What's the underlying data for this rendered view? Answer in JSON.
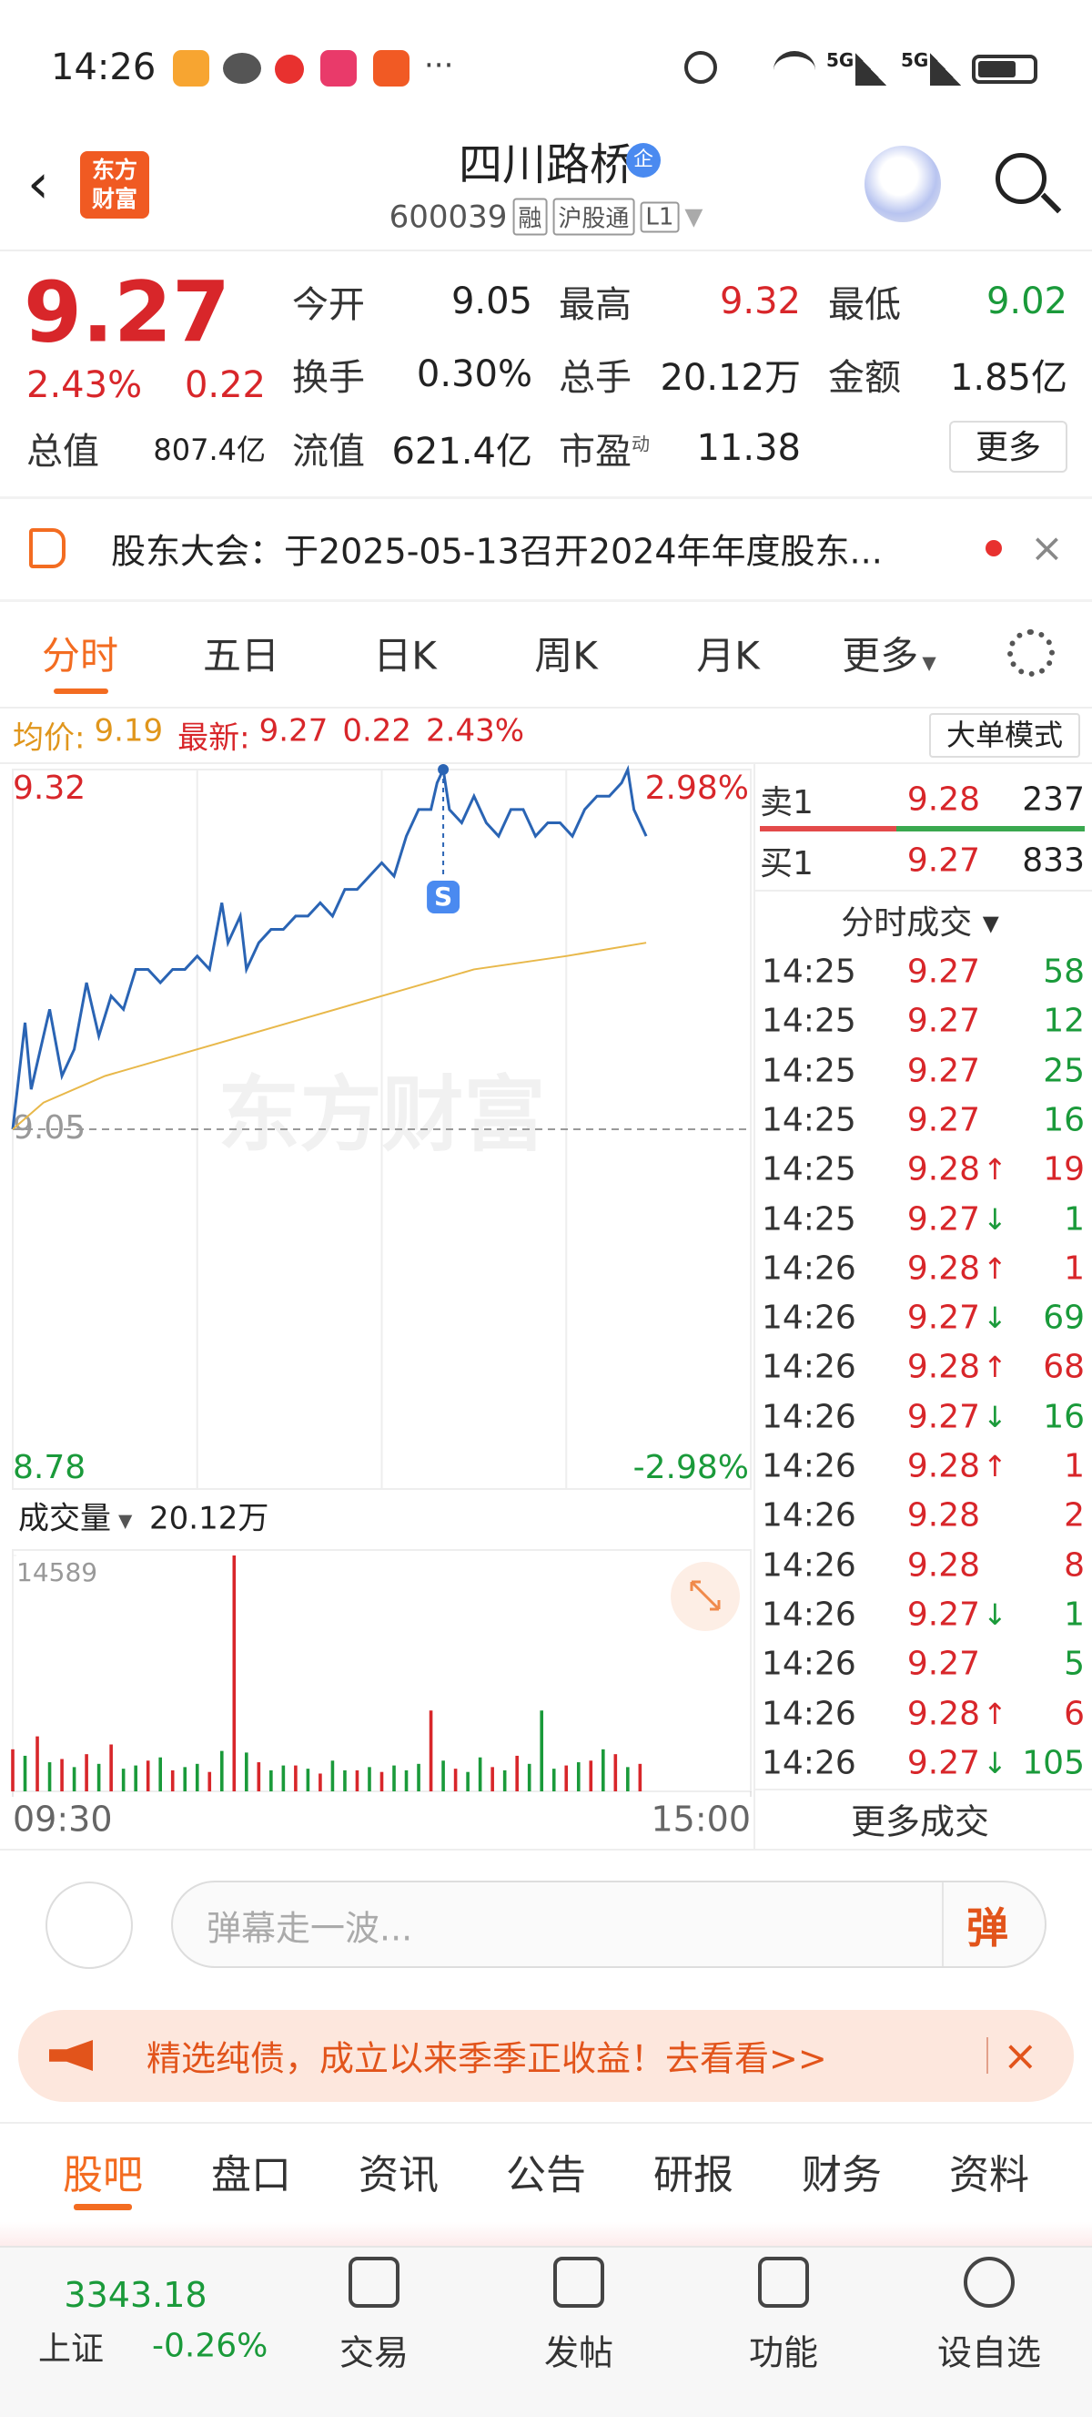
{
  "status": {
    "time": "14:26",
    "network": [
      "5G",
      "5G"
    ]
  },
  "header": {
    "logo": "东方财富",
    "title": "四川路桥",
    "badge": "企",
    "code": "600039",
    "tags": [
      "融",
      "沪股通",
      "L1"
    ]
  },
  "quote": {
    "price": "9.27",
    "change_pct": "2.43%",
    "change": "0.22",
    "more": "更多",
    "fields": [
      {
        "label": "今开",
        "value": "9.05",
        "color": "#222222"
      },
      {
        "label": "最高",
        "value": "9.32",
        "color": "#d8262a"
      },
      {
        "label": "最低",
        "value": "9.02",
        "color": "#1a9a3a"
      },
      {
        "label": "换手",
        "value": "0.30%",
        "color": "#222222"
      },
      {
        "label": "总手",
        "value": "20.12万",
        "color": "#222222"
      },
      {
        "label": "金额",
        "value": "1.85亿",
        "color": "#222222"
      },
      {
        "label": "总值",
        "value": "807.4亿",
        "color": "#222222"
      },
      {
        "label": "流值",
        "value": "621.4亿",
        "color": "#222222"
      },
      {
        "label": "市盈",
        "label_sup": "动",
        "value": "11.38",
        "color": "#222222"
      }
    ]
  },
  "notice": {
    "text": "股东大会：于2025-05-13召开2024年年度股东..."
  },
  "tabs": {
    "items": [
      "分时",
      "五日",
      "日K",
      "周K",
      "月K",
      "更多"
    ],
    "active": 0
  },
  "info": {
    "avg_label": "均价:",
    "avg": "9.19",
    "last_label": "最新:",
    "last": "9.27",
    "change": "0.22",
    "change_pct": "2.43%",
    "mode": "大单模式"
  },
  "chart_data": [
    {
      "type": "line",
      "xlim": [
        0,
        240
      ],
      "xticks": [
        {
          "value": 0,
          "label": "09:30"
        },
        {
          "value": 240,
          "label": "15:00"
        }
      ],
      "ylim": [
        8.78,
        9.32
      ],
      "yticks": [
        8.78,
        9.05,
        9.32
      ],
      "y2lim": [
        -2.98,
        2.98
      ],
      "y2ticks": [
        {
          "value": -2.98,
          "label": "-2.98%"
        },
        {
          "value": 2.98,
          "label": "2.98%"
        }
      ],
      "watermark": "东方财富",
      "annotation": {
        "label": "S",
        "x": 140
      },
      "series": [
        {
          "color": "#2a64b4",
          "x": [
            0,
            2,
            4,
            6,
            8,
            12,
            16,
            20,
            24,
            28,
            32,
            36,
            40,
            44,
            48,
            52,
            56,
            60,
            64,
            68,
            70,
            74,
            76,
            80,
            84,
            88,
            92,
            96,
            100,
            104,
            108,
            112,
            116,
            120,
            124,
            128,
            132,
            136,
            138,
            140,
            142,
            146,
            150,
            154,
            158,
            162,
            166,
            170,
            174,
            178,
            182,
            186,
            190,
            194,
            198,
            200,
            202,
            204,
            206
          ],
          "values": [
            9.05,
            9.09,
            9.13,
            9.08,
            9.1,
            9.14,
            9.09,
            9.11,
            9.16,
            9.12,
            9.15,
            9.14,
            9.17,
            9.17,
            9.16,
            9.17,
            9.17,
            9.18,
            9.17,
            9.22,
            9.19,
            9.21,
            9.17,
            9.19,
            9.2,
            9.2,
            9.21,
            9.21,
            9.22,
            9.21,
            9.23,
            9.23,
            9.24,
            9.25,
            9.24,
            9.27,
            9.29,
            9.29,
            9.31,
            9.32,
            9.29,
            9.28,
            9.3,
            9.28,
            9.27,
            9.29,
            9.29,
            9.27,
            9.28,
            9.28,
            9.27,
            9.29,
            9.3,
            9.3,
            9.31,
            9.32,
            9.29,
            9.28,
            9.27
          ]
        },
        {
          "color": "#e8b84a",
          "x": [
            0,
            10,
            30,
            60,
            90,
            120,
            150,
            180,
            206
          ],
          "values": [
            9.05,
            9.07,
            9.09,
            9.11,
            9.13,
            9.15,
            9.17,
            9.18,
            9.19
          ]
        }
      ]
    },
    {
      "type": "bar",
      "label": "成交量",
      "total": "20.12万",
      "xlim": [
        0,
        240
      ],
      "ylim": [
        0,
        14589
      ],
      "yticks": [
        14589
      ],
      "series": [
        {
          "color": "#d8262a",
          "x": [
            0,
            8,
            16,
            24,
            32,
            44,
            52,
            64,
            72,
            80,
            92,
            100,
            112,
            120,
            136,
            144,
            156,
            164,
            180,
            188,
            196,
            204
          ],
          "values": [
            2600,
            3400,
            2000,
            2300,
            2900,
            1900,
            1300,
            1200,
            14589,
            1800,
            1600,
            1100,
            1300,
            1200,
            5000,
            1400,
            1500,
            2200,
            1600,
            1900,
            2300,
            1700
          ]
        },
        {
          "color": "#1a9a3a",
          "x": [
            4,
            12,
            20,
            28,
            36,
            40,
            48,
            56,
            60,
            68,
            76,
            84,
            88,
            96,
            104,
            108,
            116,
            124,
            128,
            132,
            140,
            148,
            152,
            160,
            168,
            172,
            176,
            184,
            192,
            200
          ],
          "values": [
            2200,
            1800,
            1500,
            1700,
            1400,
            1600,
            2100,
            1500,
            1700,
            2500,
            2400,
            1300,
            1600,
            1400,
            1900,
            1300,
            1500,
            1600,
            1300,
            1700,
            1900,
            1200,
            2100,
            1300,
            1700,
            5000,
            1400,
            1800,
            2600,
            1500
          ]
        }
      ]
    }
  ],
  "trades": {
    "book": [
      {
        "label": "卖1",
        "price": "9.28",
        "volume": "237"
      },
      {
        "label": "买1",
        "price": "9.27",
        "volume": "833"
      }
    ],
    "title": "分时成交",
    "more": "更多成交",
    "rows": [
      {
        "time": "14:25",
        "price": "9.27",
        "volume": "58",
        "side": "sell"
      },
      {
        "time": "14:25",
        "price": "9.27",
        "volume": "12",
        "side": "sell"
      },
      {
        "time": "14:25",
        "price": "9.27",
        "volume": "25",
        "side": "sell"
      },
      {
        "time": "14:25",
        "price": "9.27",
        "volume": "16",
        "side": "sell"
      },
      {
        "time": "14:25",
        "price": "9.28",
        "arrow": "↑",
        "volume": "19",
        "side": "buy"
      },
      {
        "time": "14:25",
        "price": "9.27",
        "arrow": "↓",
        "volume": "1",
        "side": "sell"
      },
      {
        "time": "14:26",
        "price": "9.28",
        "arrow": "↑",
        "volume": "1",
        "side": "buy"
      },
      {
        "time": "14:26",
        "price": "9.27",
        "arrow": "↓",
        "volume": "69",
        "side": "sell"
      },
      {
        "time": "14:26",
        "price": "9.28",
        "arrow": "↑",
        "volume": "68",
        "side": "buy"
      },
      {
        "time": "14:26",
        "price": "9.27",
        "arrow": "↓",
        "volume": "16",
        "side": "sell"
      },
      {
        "time": "14:26",
        "price": "9.28",
        "arrow": "↑",
        "volume": "1",
        "side": "buy"
      },
      {
        "time": "14:26",
        "price": "9.28",
        "volume": "2",
        "side": "buy"
      },
      {
        "time": "14:26",
        "price": "9.28",
        "volume": "8",
        "side": "buy"
      },
      {
        "time": "14:26",
        "price": "9.27",
        "arrow": "↓",
        "volume": "1",
        "side": "sell"
      },
      {
        "time": "14:26",
        "price": "9.27",
        "volume": "5",
        "side": "sell"
      },
      {
        "time": "14:26",
        "price": "9.28",
        "arrow": "↑",
        "volume": "6",
        "side": "buy"
      },
      {
        "time": "14:26",
        "price": "9.27",
        "arrow": "↓",
        "volume": "105",
        "side": "sell"
      }
    ]
  },
  "comment": {
    "placeholder": "弹幕走一波...",
    "button": "弹"
  },
  "ad": {
    "text": "精选纯债，成立以来季季正收益！去看看>>"
  },
  "bottom_tabs": {
    "items": [
      "股吧",
      "盘口",
      "资讯",
      "公告",
      "研报",
      "财务",
      "资料"
    ],
    "active": 0
  },
  "nav": {
    "index_value": "3343.18",
    "index_name": "上证",
    "index_change": "-0.26%",
    "items": [
      "交易",
      "发帖",
      "功能",
      "设自选"
    ]
  }
}
